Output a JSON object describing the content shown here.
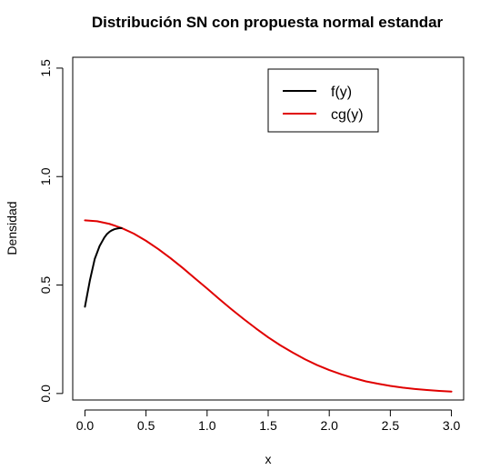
{
  "chart_data": {
    "type": "line",
    "title": "Distribución SN con propuesta normal estandar",
    "xlabel": "x",
    "ylabel": "Densidad",
    "xlim": [
      -0.1,
      3.1
    ],
    "ylim": [
      -0.03,
      1.55
    ],
    "xticks": [
      "0.0",
      "0.5",
      "1.0",
      "1.5",
      "2.0",
      "2.5",
      "3.0"
    ],
    "yticks": [
      "0.0",
      "0.5",
      "1.0",
      "1.5"
    ],
    "legend": {
      "position": "top-right"
    },
    "series": [
      {
        "name": "f(y)",
        "color": "#000000",
        "x": [
          0.0,
          0.02,
          0.04,
          0.06,
          0.08,
          0.1,
          0.12,
          0.14,
          0.16,
          0.18,
          0.2,
          0.22,
          0.24,
          0.26,
          0.28,
          0.3
        ],
        "y": [
          0.4,
          0.46,
          0.52,
          0.57,
          0.62,
          0.65,
          0.68,
          0.7,
          0.72,
          0.735,
          0.745,
          0.752,
          0.757,
          0.76,
          0.762,
          0.762
        ]
      },
      {
        "name": "cg(y)",
        "color": "#e00000",
        "x": [
          0.0,
          0.1,
          0.2,
          0.3,
          0.4,
          0.5,
          0.6,
          0.7,
          0.8,
          0.9,
          1.0,
          1.1,
          1.2,
          1.3,
          1.4,
          1.5,
          1.6,
          1.7,
          1.8,
          1.9,
          2.0,
          2.1,
          2.2,
          2.3,
          2.4,
          2.5,
          2.6,
          2.7,
          2.8,
          2.9,
          3.0
        ],
        "y": [
          0.798,
          0.794,
          0.782,
          0.763,
          0.737,
          0.704,
          0.666,
          0.624,
          0.579,
          0.531,
          0.484,
          0.435,
          0.388,
          0.343,
          0.3,
          0.259,
          0.222,
          0.189,
          0.158,
          0.131,
          0.108,
          0.088,
          0.071,
          0.056,
          0.045,
          0.035,
          0.027,
          0.021,
          0.016,
          0.012,
          0.009
        ]
      }
    ]
  }
}
